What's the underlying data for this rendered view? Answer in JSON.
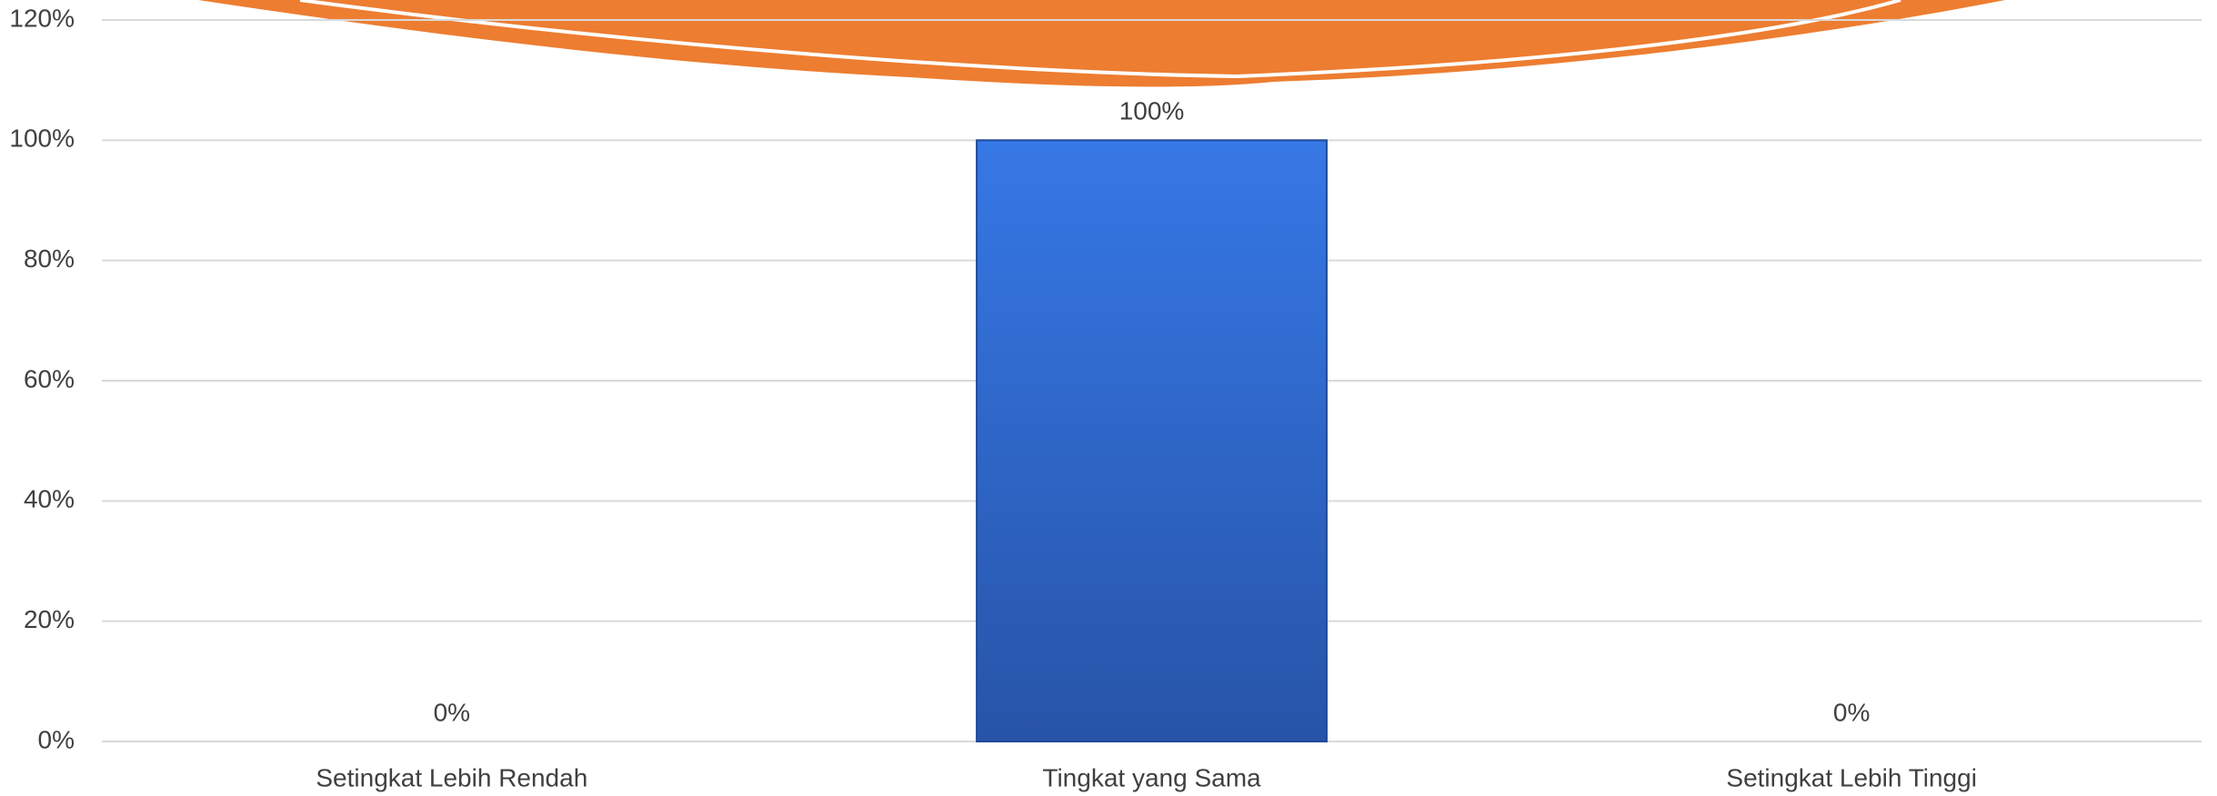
{
  "chart_data": {
    "type": "bar",
    "categories": [
      "Setingkat Lebih Rendah",
      "Tingkat yang Sama",
      "Setingkat Lebih Tinggi"
    ],
    "values": [
      0,
      100,
      0
    ],
    "value_labels": [
      "0%",
      "100%",
      "0%"
    ],
    "color": "#2f66cc",
    "ylim": [
      0,
      120
    ],
    "yticks": [
      {
        "value": 0,
        "label": "0%"
      },
      {
        "value": 20,
        "label": "20%"
      },
      {
        "value": 40,
        "label": "40%"
      },
      {
        "value": 60,
        "label": "60%"
      },
      {
        "value": 80,
        "label": "80%"
      },
      {
        "value": 100,
        "label": "100%"
      },
      {
        "value": 120,
        "label": "120%"
      }
    ],
    "grid": true
  }
}
